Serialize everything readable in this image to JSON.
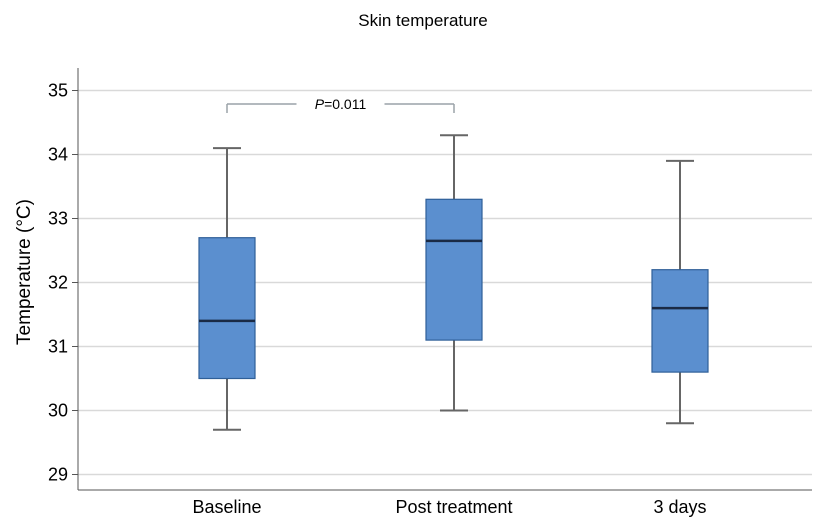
{
  "chart_data": {
    "type": "box",
    "title": "Skin temperature",
    "xlabel": "",
    "ylabel": "Temperature (°C)",
    "ylim": [
      28.8,
      35.3
    ],
    "yticks": [
      29,
      30,
      31,
      32,
      33,
      34,
      35
    ],
    "grid": true,
    "categories": [
      "Baseline",
      "Post treatment",
      "3 days"
    ],
    "boxes": [
      {
        "category": "Baseline",
        "whisker_low": 29.7,
        "q1": 30.5,
        "median": 31.4,
        "q3": 32.7,
        "whisker_high": 34.1
      },
      {
        "category": "Post treatment",
        "whisker_low": 30.0,
        "q1": 31.1,
        "median": 32.65,
        "q3": 33.3,
        "whisker_high": 34.3
      },
      {
        "category": "3 days",
        "whisker_low": 29.8,
        "q1": 30.6,
        "median": 31.6,
        "q3": 32.2,
        "whisker_high": 33.9
      }
    ],
    "annotations": [
      {
        "from": "Baseline",
        "to": "Post treatment",
        "label_italic": "P",
        "label_rest": "=0.011"
      }
    ],
    "colors": {
      "box_fill": "#5b8fcf",
      "box_stroke": "#2f5f98",
      "median": "#1a2a45",
      "whisker": "#666666",
      "grid": "#d9d9d9"
    }
  }
}
